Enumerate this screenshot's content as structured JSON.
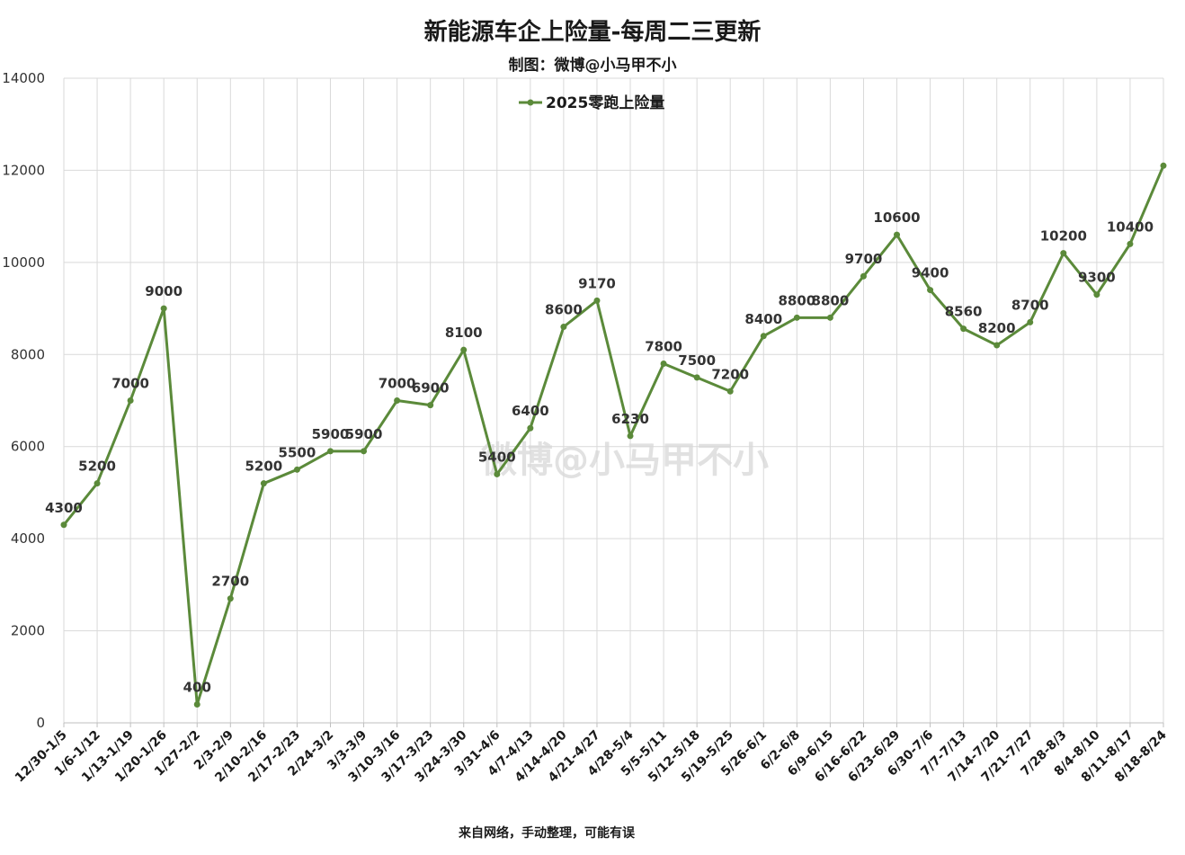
{
  "chart_data": {
    "type": "line",
    "title": "新能源车企上险量-每周二三更新",
    "subtitle": "制图：微博@小马甲不小",
    "watermark": "微博@小马甲不小",
    "footer": "来自网络，手动整理，可能有误",
    "xlabel": "",
    "ylabel": "",
    "ylim": [
      0,
      14000
    ],
    "yticks": [
      0,
      2000,
      4000,
      6000,
      8000,
      10000,
      12000,
      14000
    ],
    "grid": true,
    "legend_position": "top-center",
    "colors": {
      "series": "#5b8a3a",
      "grid": "#d9d9d9"
    },
    "categories": [
      "12/30-1/5",
      "1/6-1/12",
      "1/13-1/19",
      "1/20-1/26",
      "1/27-2/2",
      "2/3-2/9",
      "2/10-2/16",
      "2/17-2/23",
      "2/24-3/2",
      "3/3-3/9",
      "3/10-3/16",
      "3/17-3/23",
      "3/24-3/30",
      "3/31-4/6",
      "4/7-4/13",
      "4/14-4/20",
      "4/21-4/27",
      "4/28-5/4",
      "5/5-5/11",
      "5/12-5/18",
      "5/19-5/25",
      "5/26-6/1",
      "6/2-6/8",
      "6/9-6/15",
      "6/16-6/22",
      "6/23-6/29",
      "6/30-7/6",
      "7/7-7/13",
      "7/14-7/20",
      "7/21-7/27",
      "7/28-8/3",
      "8/4-8/10",
      "8/11-8/17",
      "8/18-8/24"
    ],
    "series": [
      {
        "name": "2025零跑上险量",
        "values": [
          4300,
          5200,
          7000,
          9000,
          400,
          2700,
          5200,
          5500,
          5900,
          5900,
          7000,
          6900,
          8100,
          5400,
          6400,
          8600,
          9170,
          6230,
          7800,
          7500,
          7200,
          8400,
          8800,
          8800,
          9700,
          10600,
          9400,
          8560,
          8200,
          8700,
          10200,
          9300,
          10400,
          12100
        ],
        "data_labels": [
          "4300",
          "5200",
          "7000",
          "9000",
          "400",
          "2700",
          "5200",
          "5500",
          "5900",
          "5900",
          "7000",
          "6900",
          "8100",
          "5400",
          "6400",
          "8600",
          "9170",
          "6230",
          "7800",
          "7500",
          "7200",
          "8400",
          "8800",
          "8800",
          "9700",
          "10600",
          "9400",
          "8560",
          "8200",
          "8700",
          "10200",
          "9300",
          "10400",
          ""
        ]
      }
    ]
  }
}
